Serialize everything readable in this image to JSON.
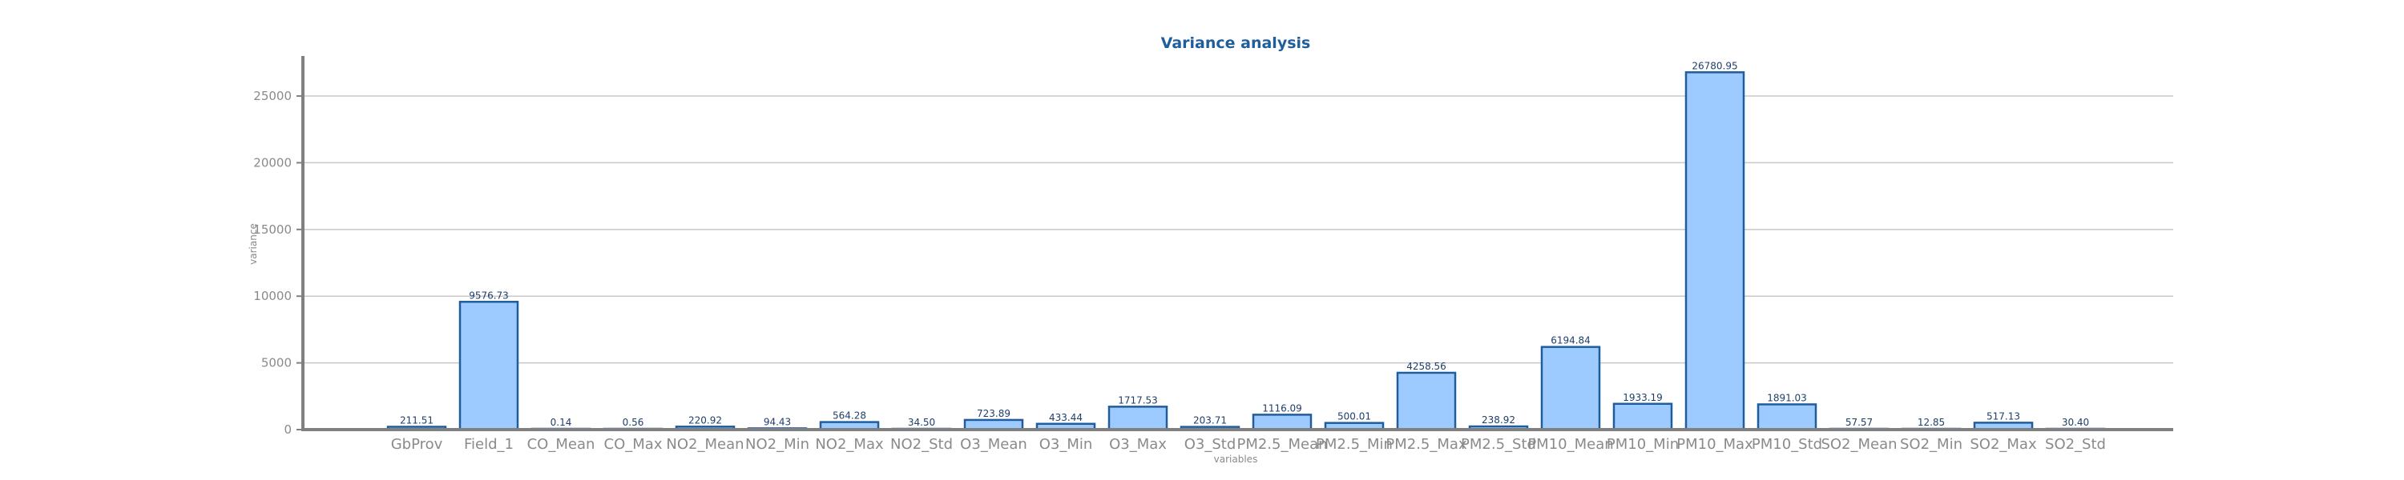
{
  "chart_data": {
    "type": "bar",
    "title": "Variance analysis",
    "xlabel": "variables",
    "ylabel": "variance",
    "ylim": [
      0,
      28000
    ],
    "yticks": [
      0,
      5000,
      10000,
      15000,
      20000,
      25000
    ],
    "grid": true,
    "categories": [
      "GbProv",
      "Field_1",
      "CO_Mean",
      "CO_Max",
      "NO2_Mean",
      "NO2_Min",
      "NO2_Max",
      "NO2_Std",
      "O3_Mean",
      "O3_Min",
      "O3_Max",
      "O3_Std",
      "PM2.5_Mean",
      "PM2.5_Min",
      "PM2.5_Max",
      "PM2.5_Std",
      "PM10_Mean",
      "PM10_Min",
      "PM10_Max",
      "PM10_Std",
      "SO2_Mean",
      "SO2_Min",
      "SO2_Max",
      "SO2_Std"
    ],
    "values": [
      211.51,
      9576.73,
      0.14,
      0.56,
      220.92,
      94.43,
      564.28,
      34.5,
      723.89,
      433.44,
      1717.53,
      203.71,
      1116.09,
      500.01,
      4258.56,
      238.92,
      6194.84,
      1933.19,
      26780.95,
      1891.03,
      57.57,
      12.85,
      517.13,
      30.4
    ],
    "value_labels": [
      "211.51",
      "9576.73",
      "0.14",
      "0.56",
      "220.92",
      "94.43",
      "564.28",
      "34.50",
      "723.89",
      "433.44",
      "1717.53",
      "203.71",
      "1116.09",
      "500.01",
      "4258.56",
      "238.92",
      "6194.84",
      "1933.19",
      "26780.95",
      "1891.03",
      "57.57",
      "12.85",
      "517.13",
      "30.40"
    ],
    "colors": {
      "bar_fill": "#9ecbff",
      "bar_stroke": "#1f5d9c",
      "title": "#1f5d9c",
      "grid": "#c8c8c8",
      "axis": "#808080"
    }
  }
}
